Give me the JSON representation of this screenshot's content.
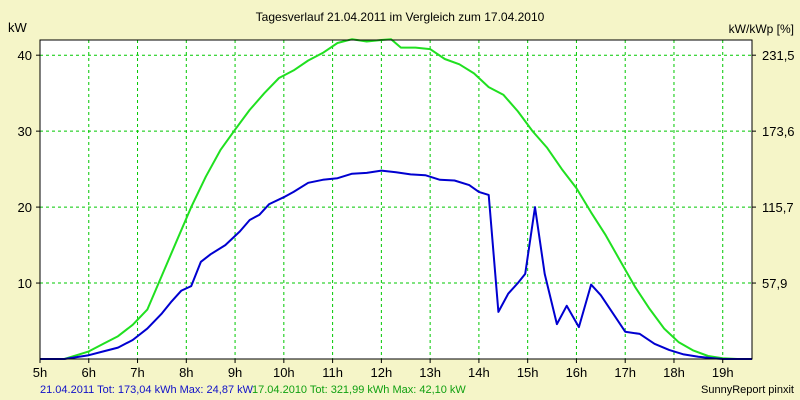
{
  "chart_data": {
    "type": "line",
    "title": "Tagesverlauf 21.04.2011 im Vergleich zum 17.04.2010",
    "ylabel_left": "kW",
    "ylabel_right": "kW/kWp [%]",
    "ylim": [
      0,
      42
    ],
    "xlim": [
      5,
      19.6
    ],
    "x_ticks": [
      5,
      6,
      7,
      8,
      9,
      10,
      11,
      12,
      13,
      14,
      15,
      16,
      17,
      18,
      19
    ],
    "x_tick_labels": [
      "5h",
      "6h",
      "7h",
      "8h",
      "9h",
      "10h",
      "11h",
      "12h",
      "13h",
      "14h",
      "15h",
      "16h",
      "17h",
      "18h",
      "19h"
    ],
    "y_left_ticks": [
      10,
      20,
      30,
      40
    ],
    "y_left_tick_labels": [
      "10",
      "20",
      "30",
      "40"
    ],
    "y_right_ticks": [
      10,
      20,
      30,
      40
    ],
    "y_right_tick_labels": [
      "57,9",
      "115,7",
      "173,6",
      "231,5"
    ],
    "grid": true,
    "series": [
      {
        "name": "21.04.2011",
        "color": "#0000d0",
        "x": [
          5.0,
          5.5,
          6.0,
          6.3,
          6.6,
          6.9,
          7.2,
          7.5,
          7.7,
          7.9,
          8.1,
          8.3,
          8.5,
          8.8,
          9.1,
          9.3,
          9.5,
          9.7,
          10.0,
          10.2,
          10.5,
          10.8,
          11.1,
          11.4,
          11.7,
          12.0,
          12.3,
          12.6,
          12.9,
          13.2,
          13.5,
          13.8,
          14.0,
          14.2,
          14.4,
          14.6,
          14.8,
          14.95,
          15.15,
          15.35,
          15.6,
          15.8,
          16.05,
          16.3,
          16.5,
          16.75,
          17.0,
          17.3,
          17.6,
          17.9,
          18.2,
          18.5,
          18.8,
          19.0,
          19.3,
          19.6
        ],
        "y": [
          0.0,
          0.0,
          0.5,
          1.0,
          1.5,
          2.5,
          4.0,
          6.0,
          7.6,
          9.0,
          9.6,
          12.8,
          13.8,
          15.0,
          16.8,
          18.3,
          19.0,
          20.4,
          21.3,
          22.0,
          23.2,
          23.6,
          23.8,
          24.4,
          24.5,
          24.8,
          24.6,
          24.3,
          24.2,
          23.6,
          23.5,
          22.9,
          22.0,
          21.6,
          6.2,
          8.6,
          10.0,
          11.2,
          20.0,
          11.2,
          4.6,
          7.0,
          4.2,
          9.8,
          8.4,
          6.0,
          3.6,
          3.3,
          2.0,
          1.2,
          0.6,
          0.3,
          0.1,
          0.0,
          0.0,
          0.0
        ]
      },
      {
        "name": "17.04.2010",
        "color": "#20e020",
        "x": [
          5.0,
          5.5,
          6.0,
          6.3,
          6.6,
          6.9,
          7.2,
          7.5,
          7.8,
          8.1,
          8.4,
          8.7,
          9.0,
          9.3,
          9.6,
          9.9,
          10.2,
          10.5,
          10.8,
          11.1,
          11.4,
          11.7,
          12.0,
          12.2,
          12.4,
          12.7,
          13.0,
          13.3,
          13.6,
          13.9,
          14.2,
          14.5,
          14.8,
          15.1,
          15.4,
          15.7,
          16.0,
          16.3,
          16.6,
          16.9,
          17.2,
          17.5,
          17.8,
          18.1,
          18.4,
          18.7,
          19.0,
          19.3,
          19.6
        ],
        "y": [
          0.0,
          0.0,
          1.0,
          2.0,
          3.0,
          4.5,
          6.5,
          11.0,
          15.5,
          20.0,
          24.0,
          27.5,
          30.2,
          32.8,
          35.0,
          37.0,
          38.0,
          39.3,
          40.3,
          41.6,
          42.1,
          41.8,
          42.0,
          42.1,
          41.0,
          41.0,
          40.8,
          39.5,
          38.8,
          37.6,
          35.8,
          34.8,
          32.6,
          30.0,
          27.8,
          25.0,
          22.5,
          19.3,
          16.3,
          12.9,
          9.5,
          6.6,
          4.0,
          2.2,
          1.1,
          0.4,
          0.1,
          0.0,
          0.0
        ]
      }
    ]
  },
  "footer": {
    "series1_text": "21.04.2011 Tot: 173,04 kWh Max: 24,87 kW",
    "series2_text": "17.04.2010 Tot: 321,99 kWh Max: 42,10 kW",
    "credit": "SunnyReport pinxit"
  }
}
